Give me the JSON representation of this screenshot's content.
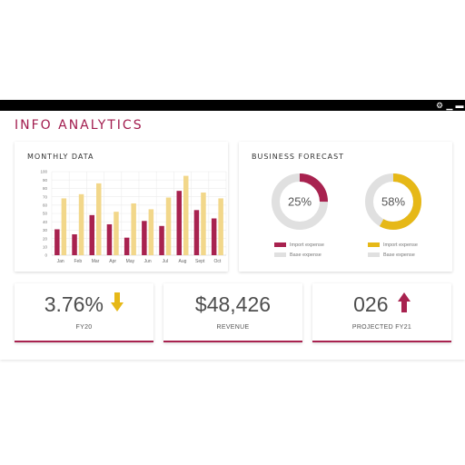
{
  "app": {
    "title": "INFO ANALYTICS"
  },
  "window_controls": {
    "settings": "⚙",
    "minimize": "▁",
    "maximize": "▬"
  },
  "colors": {
    "accent": "#a21c4e",
    "import": "#a8224f",
    "base": "#e0e0e0",
    "gold": "#e6b817",
    "bar_light": "#f2d78a",
    "arrow_down": "#e6b817",
    "arrow_up": "#a8224f"
  },
  "monthly": {
    "title": "MONTHLY DATA",
    "chart_data": {
      "type": "bar",
      "categories": [
        "Jan",
        "Feb",
        "Mar",
        "Apr",
        "May",
        "Jun",
        "Jul",
        "Aug",
        "Sept",
        "Oct"
      ],
      "series": [
        {
          "values": [
            31,
            25,
            48,
            37,
            21,
            41,
            35,
            77,
            54,
            44
          ]
        },
        {
          "values": [
            68,
            73,
            86,
            52,
            62,
            55,
            69,
            95,
            75,
            68
          ]
        }
      ],
      "ylim": [
        0,
        100
      ],
      "yticks": [
        "0",
        "10",
        "20",
        "30",
        "40",
        "50",
        "60",
        "70",
        "80",
        "90",
        "100"
      ],
      "grid": true
    }
  },
  "forecast": {
    "title": "BUSINESS FORECAST",
    "donuts": [
      {
        "percent": 25,
        "label": "25%",
        "color": "#a8224f",
        "legend": [
          {
            "label": "Import expense",
            "color": "#a8224f"
          },
          {
            "label": "Base expense",
            "color": "#e0e0e0"
          }
        ]
      },
      {
        "percent": 58,
        "label": "58%",
        "color": "#e6b817",
        "legend": [
          {
            "label": "Import expense",
            "color": "#e6b817"
          },
          {
            "label": "Base expense",
            "color": "#e0e0e0"
          }
        ]
      }
    ]
  },
  "kpis": [
    {
      "value": "3.76%",
      "label": "FY20",
      "arrow": "arrow-down-icon"
    },
    {
      "value": "$48,426",
      "label": "REVENUE"
    },
    {
      "value": "026",
      "label": "PROJECTED FY21",
      "arrow": "arrow-up-icon"
    }
  ]
}
